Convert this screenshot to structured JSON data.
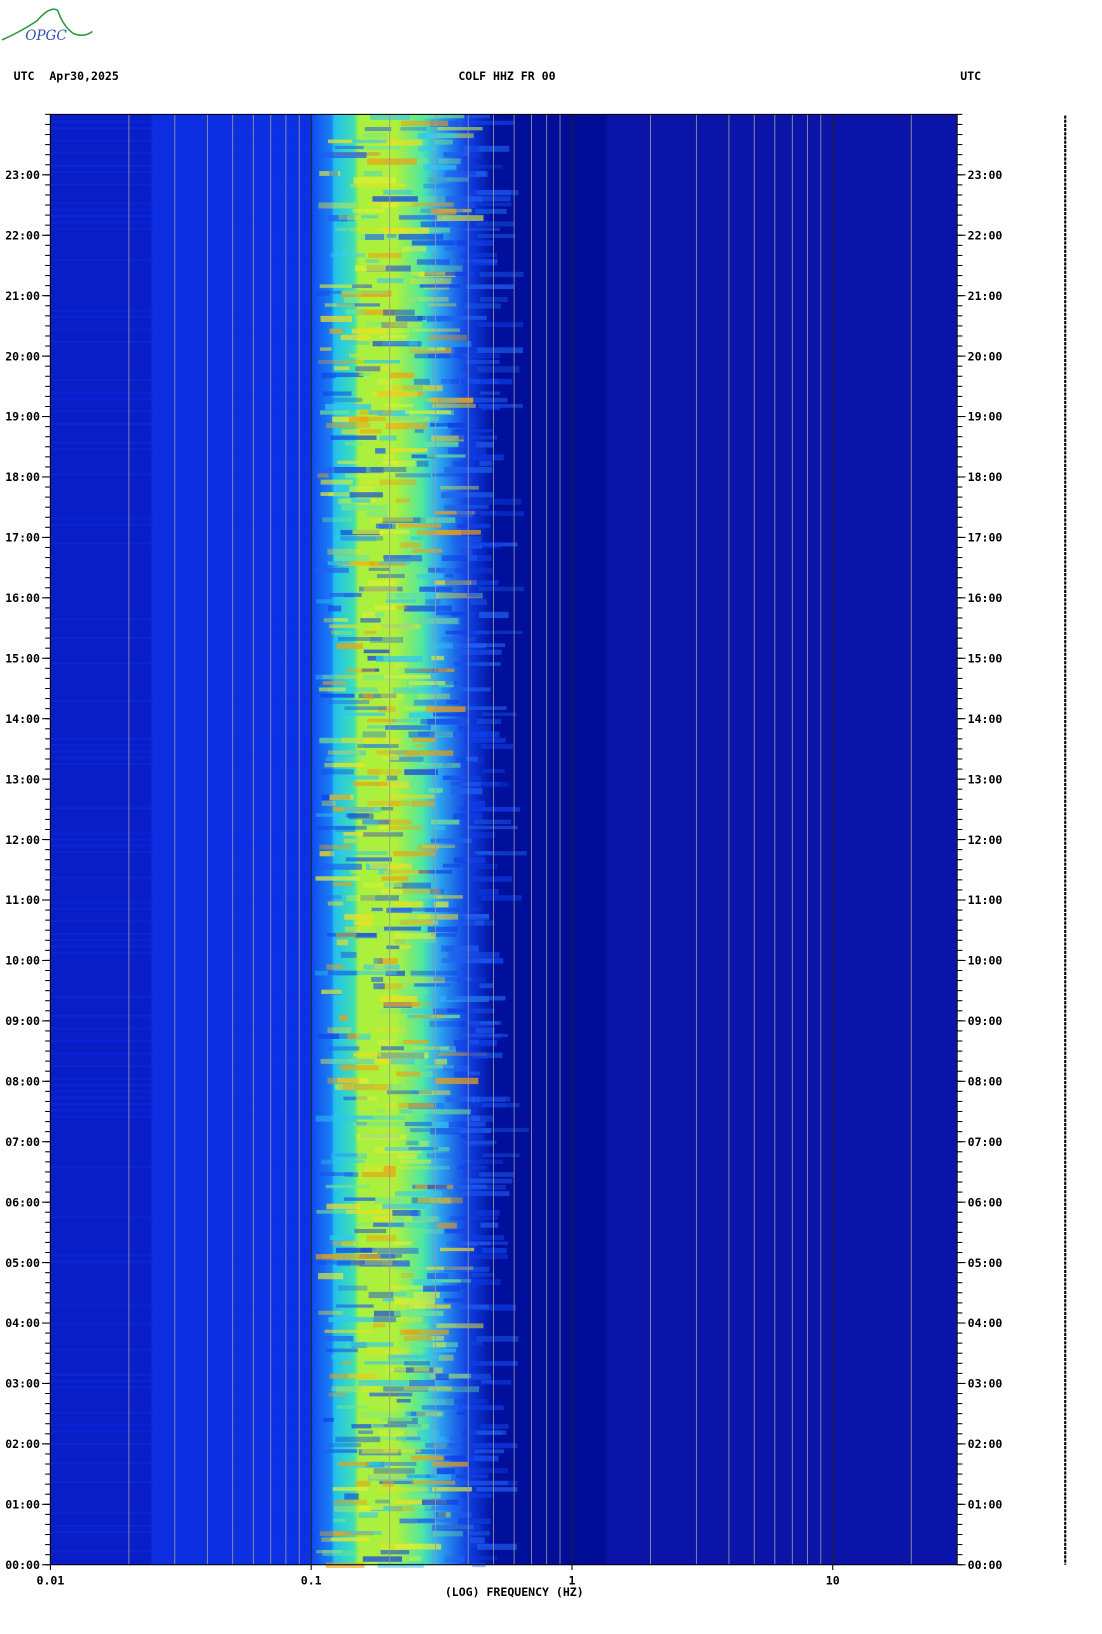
{
  "logo": "OPGC",
  "chart_data": {
    "type": "spectrogram",
    "timezone_left": "UTC",
    "date": "Apr30,2025",
    "title": "COLF HHZ FR 00",
    "timezone_right": "UTC",
    "xlabel": "(LOG) FREQUENCY (HZ)",
    "xlog": true,
    "xlim": [
      0.01,
      30
    ],
    "xticks": [
      {
        "value": 0.01,
        "label": "0.01"
      },
      {
        "value": 0.1,
        "label": "0.1"
      },
      1,
      10
    ],
    "ylim": [
      0,
      24
    ],
    "yticks": [
      {
        "value": 0,
        "label": "00:00"
      },
      {
        "value": 1,
        "label": "01:00"
      },
      {
        "value": 2,
        "label": "02:00"
      },
      {
        "value": 3,
        "label": "03:00"
      },
      {
        "value": 4,
        "label": "04:00"
      },
      {
        "value": 5,
        "label": "05:00"
      },
      {
        "value": 6,
        "label": "06:00"
      },
      {
        "value": 7,
        "label": "07:00"
      },
      {
        "value": 8,
        "label": "08:00"
      },
      {
        "value": 9,
        "label": "09:00"
      },
      {
        "value": 10,
        "label": "10:00"
      },
      {
        "value": 11,
        "label": "11:00"
      },
      {
        "value": 12,
        "label": "12:00"
      },
      {
        "value": 13,
        "label": "13:00"
      },
      {
        "value": 14,
        "label": "14:00"
      },
      {
        "value": 15,
        "label": "15:00"
      },
      {
        "value": 16,
        "label": "16:00"
      },
      {
        "value": 17,
        "label": "17:00"
      },
      {
        "value": 18,
        "label": "18:00"
      },
      {
        "value": 19,
        "label": "19:00"
      },
      {
        "value": 20,
        "label": "20:00"
      },
      {
        "value": 21,
        "label": "21:00"
      },
      {
        "value": 22,
        "label": "22:00"
      },
      {
        "value": 23,
        "label": "23:00"
      }
    ],
    "grid": true
  }
}
